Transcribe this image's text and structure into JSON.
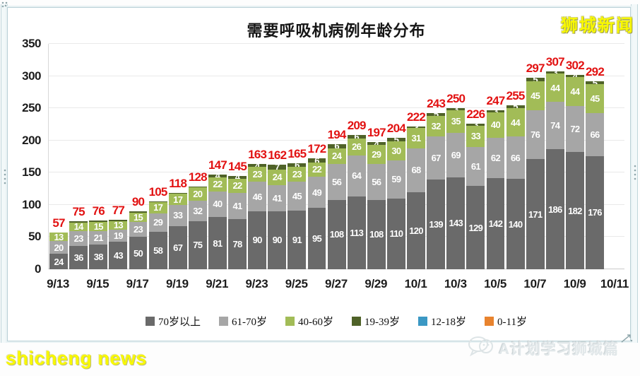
{
  "watermarks": {
    "top_right": "狮城新闻",
    "bottom_left": "shicheng news",
    "bottom_right": "A计划学习狮城篇"
  },
  "chart_data": {
    "type": "bar",
    "stacked": true,
    "title": "需要呼吸机病例年龄分布",
    "categories": [
      "9/13",
      "9/14",
      "9/15",
      "9/16",
      "9/17",
      "9/18",
      "9/19",
      "9/20",
      "9/21",
      "9/22",
      "9/23",
      "9/24",
      "9/25",
      "9/26",
      "9/27",
      "9/28",
      "9/29",
      "9/30",
      "10/1",
      "10/2",
      "10/3",
      "10/4",
      "10/5",
      "10/6",
      "10/7",
      "10/8",
      "10/9",
      "10/10"
    ],
    "x_tick_labels": [
      "9/13",
      "9/15",
      "9/17",
      "9/19",
      "9/21",
      "9/23",
      "9/25",
      "9/27",
      "9/29",
      "10/1",
      "10/3",
      "10/5",
      "10/7",
      "10/9",
      "10/11"
    ],
    "x_slots": 29,
    "series": [
      {
        "name": "70岁以上",
        "color": "#6a6a6a",
        "values": [
          24,
          36,
          38,
          43,
          50,
          58,
          67,
          75,
          81,
          78,
          90,
          90,
          91,
          95,
          108,
          113,
          108,
          110,
          120,
          139,
          143,
          129,
          142,
          140,
          171,
          186,
          182,
          176
        ]
      },
      {
        "name": "61-70岁",
        "color": "#a6a6a6",
        "values": [
          20,
          23,
          21,
          19,
          23,
          29,
          33,
          32,
          40,
          41,
          46,
          41,
          45,
          49,
          56,
          64,
          56,
          59,
          68,
          67,
          69,
          61,
          62,
          66,
          76,
          74,
          72,
          66
        ]
      },
      {
        "name": "40-60岁",
        "color": "#a2bc57",
        "values": [
          13,
          14,
          15,
          13,
          15,
          17,
          17,
          20,
          22,
          22,
          23,
          24,
          23,
          22,
          24,
          26,
          29,
          30,
          31,
          32,
          35,
          33,
          40,
          44,
          45,
          44,
          44,
          45
        ]
      },
      {
        "name": "19-39岁",
        "color": "#4f6228",
        "values": [
          0,
          2,
          2,
          2,
          2,
          1,
          1,
          1,
          4,
          4,
          4,
          7,
          6,
          6,
          6,
          6,
          4,
          5,
          3,
          5,
          3,
          3,
          3,
          5,
          5,
          3,
          4,
          5
        ]
      },
      {
        "name": "12-18岁",
        "color": "#3b98c4",
        "values": [
          0,
          0,
          0,
          0,
          0,
          0,
          0,
          0,
          0,
          0,
          0,
          0,
          0,
          0,
          0,
          0,
          0,
          0,
          0,
          0,
          0,
          0,
          0,
          0,
          0,
          0,
          0,
          0
        ]
      },
      {
        "name": "0-11岁",
        "color": "#e8832e",
        "values": [
          0,
          0,
          0,
          0,
          0,
          0,
          0,
          0,
          0,
          0,
          0,
          0,
          0,
          0,
          0,
          0,
          0,
          0,
          0,
          0,
          0,
          0,
          0,
          0,
          0,
          0,
          0,
          0
        ]
      }
    ],
    "totals": [
      57,
      75,
      76,
      77,
      90,
      105,
      118,
      128,
      147,
      145,
      163,
      162,
      165,
      172,
      194,
      209,
      197,
      204,
      222,
      243,
      250,
      226,
      247,
      255,
      297,
      307,
      302,
      292
    ],
    "total_label_color": "#e21212",
    "segment_label_min_value": 3,
    "ylim": [
      0,
      350
    ],
    "y_ticks": [
      0,
      50,
      100,
      150,
      200,
      250,
      300,
      350
    ],
    "grid": true,
    "legend_position": "bottom"
  }
}
